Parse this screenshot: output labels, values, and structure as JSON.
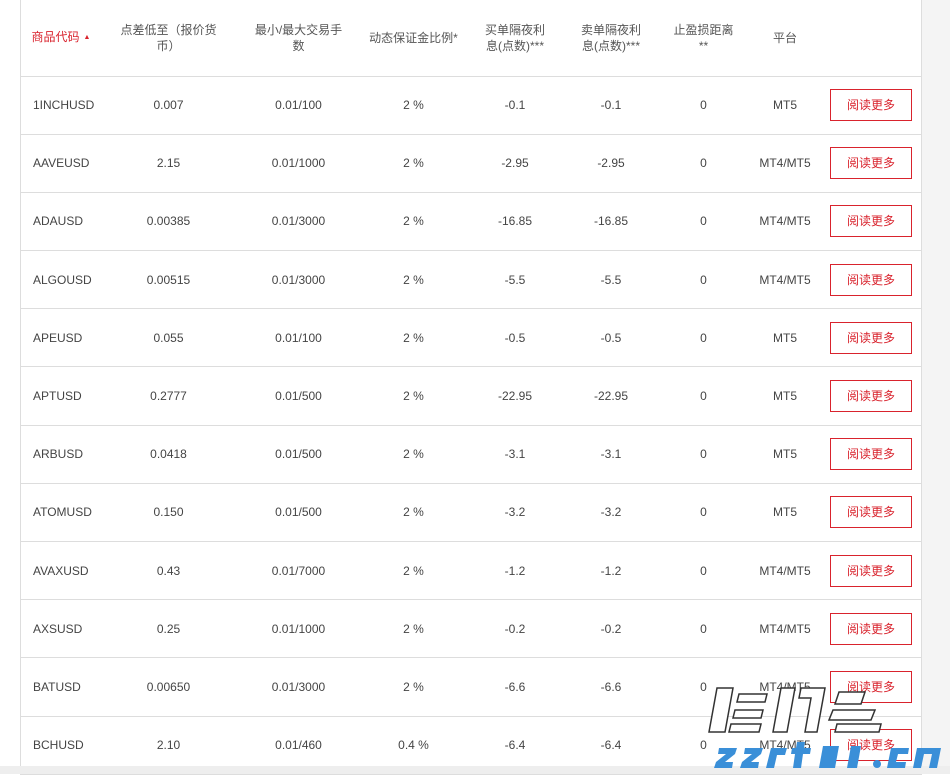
{
  "header": {
    "symbol": "商品代码",
    "sort_indicator": "▲",
    "spread": "点差低至（报价货币）",
    "lots": "最小/最大交易手数",
    "margin": "动态保证金比例*",
    "swap_long": "买单隔夜利息(点数)***",
    "swap_short": "卖单隔夜利息(点数)***",
    "stop_level": "止盈损距离**",
    "platform": "平台"
  },
  "button_label": "阅读更多",
  "rows": [
    {
      "symbol": "1INCHUSD",
      "spread": "0.007",
      "lots": "0.01/100",
      "margin": "2 %",
      "swap_long": "-0.1",
      "swap_short": "-0.1",
      "stop": "0",
      "platform": "MT5"
    },
    {
      "symbol": "AAVEUSD",
      "spread": "2.15",
      "lots": "0.01/1000",
      "margin": "2 %",
      "swap_long": "-2.95",
      "swap_short": "-2.95",
      "stop": "0",
      "platform": "MT4/MT5"
    },
    {
      "symbol": "ADAUSD",
      "spread": "0.00385",
      "lots": "0.01/3000",
      "margin": "2 %",
      "swap_long": "-16.85",
      "swap_short": "-16.85",
      "stop": "0",
      "platform": "MT4/MT5"
    },
    {
      "symbol": "ALGOUSD",
      "spread": "0.00515",
      "lots": "0.01/3000",
      "margin": "2 %",
      "swap_long": "-5.5",
      "swap_short": "-5.5",
      "stop": "0",
      "platform": "MT4/MT5"
    },
    {
      "symbol": "APEUSD",
      "spread": "0.055",
      "lots": "0.01/100",
      "margin": "2 %",
      "swap_long": "-0.5",
      "swap_short": "-0.5",
      "stop": "0",
      "platform": "MT5"
    },
    {
      "symbol": "APTUSD",
      "spread": "0.2777",
      "lots": "0.01/500",
      "margin": "2 %",
      "swap_long": "-22.95",
      "swap_short": "-22.95",
      "stop": "0",
      "platform": "MT5"
    },
    {
      "symbol": "ARBUSD",
      "spread": "0.0418",
      "lots": "0.01/500",
      "margin": "2 %",
      "swap_long": "-3.1",
      "swap_short": "-3.1",
      "stop": "0",
      "platform": "MT5"
    },
    {
      "symbol": "ATOMUSD",
      "spread": "0.150",
      "lots": "0.01/500",
      "margin": "2 %",
      "swap_long": "-3.2",
      "swap_short": "-3.2",
      "stop": "0",
      "platform": "MT5"
    },
    {
      "symbol": "AVAXUSD",
      "spread": "0.43",
      "lots": "0.01/7000",
      "margin": "2 %",
      "swap_long": "-1.2",
      "swap_short": "-1.2",
      "stop": "0",
      "platform": "MT4/MT5"
    },
    {
      "symbol": "AXSUSD",
      "spread": "0.25",
      "lots": "0.01/1000",
      "margin": "2 %",
      "swap_long": "-0.2",
      "swap_short": "-0.2",
      "stop": "0",
      "platform": "MT4/MT5"
    },
    {
      "symbol": "BATUSD",
      "spread": "0.00650",
      "lots": "0.01/3000",
      "margin": "2 %",
      "swap_long": "-6.6",
      "swap_short": "-6.6",
      "stop": "0",
      "platform": "MT4/MT5"
    },
    {
      "symbol": "BCHUSD",
      "spread": "2.10",
      "lots": "0.01/460",
      "margin": "0.4 %",
      "swap_long": "-6.4",
      "swap_short": "-6.4",
      "stop": "0",
      "platform": "MT4/MT5"
    }
  ],
  "watermark": {
    "title": "海马财经",
    "url": "zzrt01.cn"
  },
  "colors": {
    "accent": "#d9232d"
  }
}
